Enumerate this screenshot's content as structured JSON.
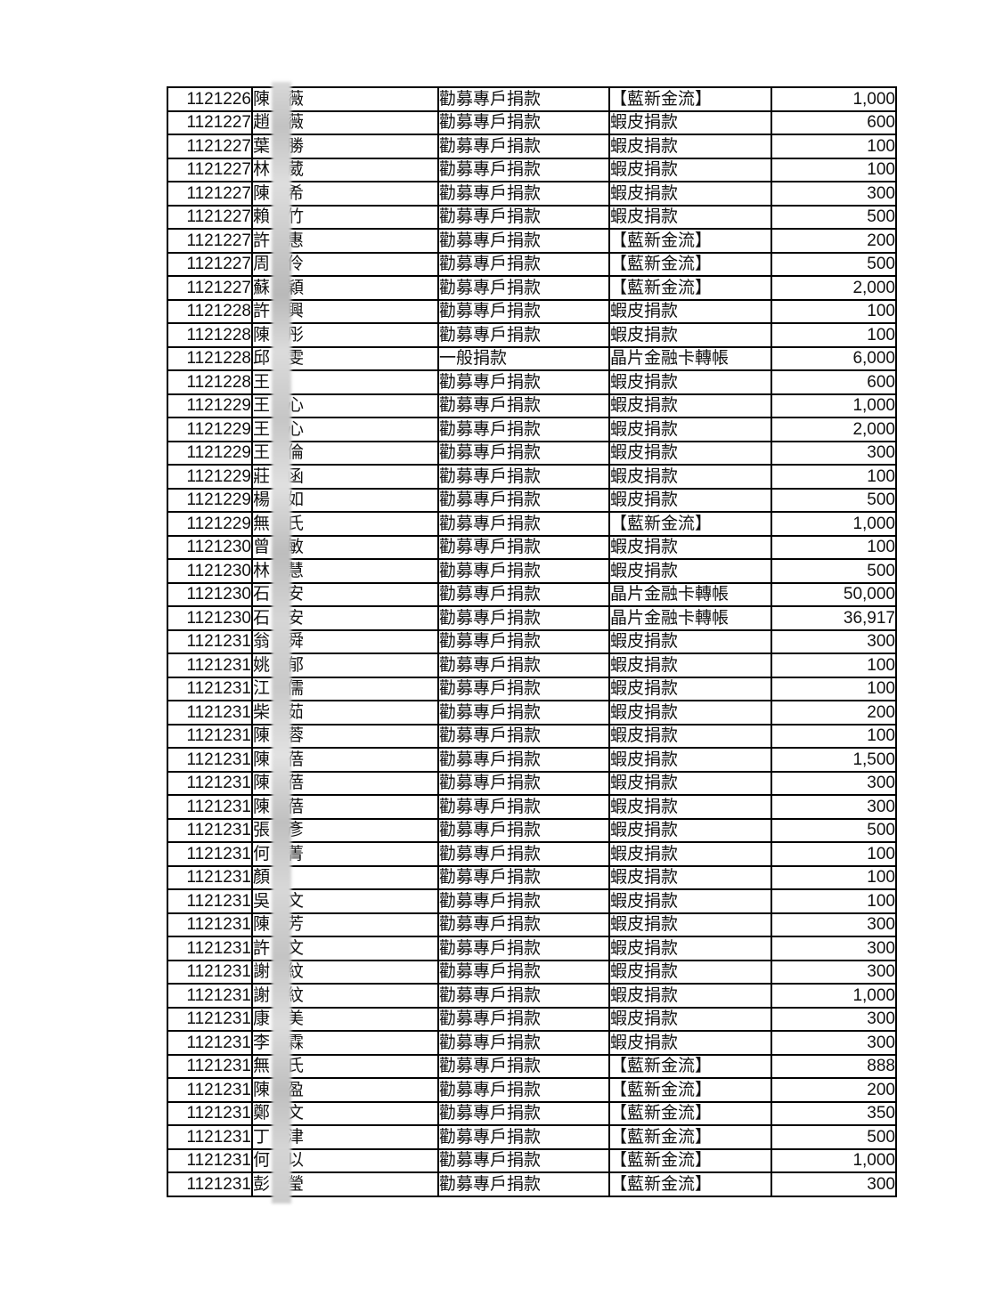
{
  "document": {
    "kind": "donation-record-table",
    "background_color": "#ffffff",
    "border_color": "#000000",
    "text_color": "#111111",
    "blur_strip_color": "#cccccc"
  },
  "table": {
    "columns": [
      "date",
      "donor_name",
      "donation_type",
      "payment_method",
      "amount"
    ],
    "rows": [
      {
        "date": "1121226",
        "name_left": "陳",
        "name_right": "薇",
        "type": "勸募專戶捐款",
        "method": "【藍新金流】",
        "amount": "1,000"
      },
      {
        "date": "1121227",
        "name_left": "趙",
        "name_right": "薇",
        "type": "勸募專戶捐款",
        "method": "蝦皮捐款",
        "amount": "600"
      },
      {
        "date": "1121227",
        "name_left": "葉",
        "name_right": "勝",
        "type": "勸募專戶捐款",
        "method": "蝦皮捐款",
        "amount": "100"
      },
      {
        "date": "1121227",
        "name_left": "林",
        "name_right": "葳",
        "type": "勸募專戶捐款",
        "method": "蝦皮捐款",
        "amount": "100"
      },
      {
        "date": "1121227",
        "name_left": "陳",
        "name_right": "希",
        "type": "勸募專戶捐款",
        "method": "蝦皮捐款",
        "amount": "300"
      },
      {
        "date": "1121227",
        "name_left": "賴",
        "name_right": "竹",
        "type": "勸募專戶捐款",
        "method": "蝦皮捐款",
        "amount": "500"
      },
      {
        "date": "1121227",
        "name_left": "許",
        "name_right": "惠",
        "type": "勸募專戶捐款",
        "method": "【藍新金流】",
        "amount": "200"
      },
      {
        "date": "1121227",
        "name_left": "周",
        "name_right": "伶",
        "type": "勸募專戶捐款",
        "method": "【藍新金流】",
        "amount": "500"
      },
      {
        "date": "1121227",
        "name_left": "蘇",
        "name_right": "穎",
        "type": "勸募專戶捐款",
        "method": "【藍新金流】",
        "amount": "2,000"
      },
      {
        "date": "1121228",
        "name_left": "許",
        "name_right": "興",
        "type": "勸募專戶捐款",
        "method": "蝦皮捐款",
        "amount": "100"
      },
      {
        "date": "1121228",
        "name_left": "陳",
        "name_right": "彤",
        "type": "勸募專戶捐款",
        "method": "蝦皮捐款",
        "amount": "100"
      },
      {
        "date": "1121228",
        "name_left": "邱",
        "name_right": "雯",
        "type": "一般捐款",
        "method": "晶片金融卡轉帳",
        "amount": "6,000"
      },
      {
        "date": "1121228",
        "name_left": "王",
        "name_right": "",
        "type": "勸募專戶捐款",
        "method": "蝦皮捐款",
        "amount": "600"
      },
      {
        "date": "1121229",
        "name_left": "王",
        "name_right": "心",
        "type": "勸募專戶捐款",
        "method": "蝦皮捐款",
        "amount": "1,000"
      },
      {
        "date": "1121229",
        "name_left": "王",
        "name_right": "心",
        "type": "勸募專戶捐款",
        "method": "蝦皮捐款",
        "amount": "2,000"
      },
      {
        "date": "1121229",
        "name_left": "王",
        "name_right": "倫",
        "type": "勸募專戶捐款",
        "method": "蝦皮捐款",
        "amount": "300"
      },
      {
        "date": "1121229",
        "name_left": "莊",
        "name_right": "函",
        "type": "勸募專戶捐款",
        "method": "蝦皮捐款",
        "amount": "100"
      },
      {
        "date": "1121229",
        "name_left": "楊",
        "name_right": "如",
        "type": "勸募專戶捐款",
        "method": "蝦皮捐款",
        "amount": "500"
      },
      {
        "date": "1121229",
        "name_left": "無",
        "name_right": "氏",
        "type": "勸募專戶捐款",
        "method": "【藍新金流】",
        "amount": "1,000"
      },
      {
        "date": "1121230",
        "name_left": "曾",
        "name_right": "敏",
        "type": "勸募專戶捐款",
        "method": "蝦皮捐款",
        "amount": "100"
      },
      {
        "date": "1121230",
        "name_left": "林",
        "name_right": "慧",
        "type": "勸募專戶捐款",
        "method": "蝦皮捐款",
        "amount": "500"
      },
      {
        "date": "1121230",
        "name_left": "石",
        "name_right": "安",
        "type": "勸募專戶捐款",
        "method": "晶片金融卡轉帳",
        "amount": "50,000"
      },
      {
        "date": "1121230",
        "name_left": "石",
        "name_right": "安",
        "type": "勸募專戶捐款",
        "method": "晶片金融卡轉帳",
        "amount": "36,917"
      },
      {
        "date": "1121231",
        "name_left": "翁",
        "name_right": "舜",
        "type": "勸募專戶捐款",
        "method": "蝦皮捐款",
        "amount": "300"
      },
      {
        "date": "1121231",
        "name_left": "姚",
        "name_right": "郁",
        "type": "勸募專戶捐款",
        "method": "蝦皮捐款",
        "amount": "100"
      },
      {
        "date": "1121231",
        "name_left": "江",
        "name_right": "儒",
        "type": "勸募專戶捐款",
        "method": "蝦皮捐款",
        "amount": "100"
      },
      {
        "date": "1121231",
        "name_left": "柴",
        "name_right": "茹",
        "type": "勸募專戶捐款",
        "method": "蝦皮捐款",
        "amount": "200"
      },
      {
        "date": "1121231",
        "name_left": "陳",
        "name_right": "蓉",
        "type": "勸募專戶捐款",
        "method": "蝦皮捐款",
        "amount": "100"
      },
      {
        "date": "1121231",
        "name_left": "陳",
        "name_right": "蓓",
        "type": "勸募專戶捐款",
        "method": "蝦皮捐款",
        "amount": "1,500"
      },
      {
        "date": "1121231",
        "name_left": "陳",
        "name_right": "蓓",
        "type": "勸募專戶捐款",
        "method": "蝦皮捐款",
        "amount": "300"
      },
      {
        "date": "1121231",
        "name_left": "陳",
        "name_right": "蓓",
        "type": "勸募專戶捐款",
        "method": "蝦皮捐款",
        "amount": "300"
      },
      {
        "date": "1121231",
        "name_left": "張",
        "name_right": "彥",
        "type": "勸募專戶捐款",
        "method": "蝦皮捐款",
        "amount": "500"
      },
      {
        "date": "1121231",
        "name_left": "何",
        "name_right": "菁",
        "type": "勸募專戶捐款",
        "method": "蝦皮捐款",
        "amount": "100"
      },
      {
        "date": "1121231",
        "name_left": "顏",
        "name_right": "",
        "type": "勸募專戶捐款",
        "method": "蝦皮捐款",
        "amount": "100"
      },
      {
        "date": "1121231",
        "name_left": "吳",
        "name_right": "文",
        "type": "勸募專戶捐款",
        "method": "蝦皮捐款",
        "amount": "100"
      },
      {
        "date": "1121231",
        "name_left": "陳",
        "name_right": "芳",
        "type": "勸募專戶捐款",
        "method": "蝦皮捐款",
        "amount": "300"
      },
      {
        "date": "1121231",
        "name_left": "許",
        "name_right": "文",
        "type": "勸募專戶捐款",
        "method": "蝦皮捐款",
        "amount": "300"
      },
      {
        "date": "1121231",
        "name_left": "謝",
        "name_right": "紋",
        "type": "勸募專戶捐款",
        "method": "蝦皮捐款",
        "amount": "300"
      },
      {
        "date": "1121231",
        "name_left": "謝",
        "name_right": "紋",
        "type": "勸募專戶捐款",
        "method": "蝦皮捐款",
        "amount": "1,000"
      },
      {
        "date": "1121231",
        "name_left": "康",
        "name_right": "美",
        "type": "勸募專戶捐款",
        "method": "蝦皮捐款",
        "amount": "300"
      },
      {
        "date": "1121231",
        "name_left": "李",
        "name_right": "霖",
        "type": "勸募專戶捐款",
        "method": "蝦皮捐款",
        "amount": "300"
      },
      {
        "date": "1121231",
        "name_left": "無",
        "name_right": "氏",
        "type": "勸募專戶捐款",
        "method": "【藍新金流】",
        "amount": "888"
      },
      {
        "date": "1121231",
        "name_left": "陳",
        "name_right": "盈",
        "type": "勸募專戶捐款",
        "method": "【藍新金流】",
        "amount": "200"
      },
      {
        "date": "1121231",
        "name_left": "鄭",
        "name_right": "文",
        "type": "勸募專戶捐款",
        "method": "【藍新金流】",
        "amount": "350"
      },
      {
        "date": "1121231",
        "name_left": "丁",
        "name_right": "津",
        "type": "勸募專戶捐款",
        "method": "【藍新金流】",
        "amount": "500"
      },
      {
        "date": "1121231",
        "name_left": "何",
        "name_right": "以",
        "type": "勸募專戶捐款",
        "method": "【藍新金流】",
        "amount": "1,000"
      },
      {
        "date": "1121231",
        "name_left": "彭",
        "name_right": "瑩",
        "type": "勸募專戶捐款",
        "method": "【藍新金流】",
        "amount": "300"
      }
    ]
  }
}
